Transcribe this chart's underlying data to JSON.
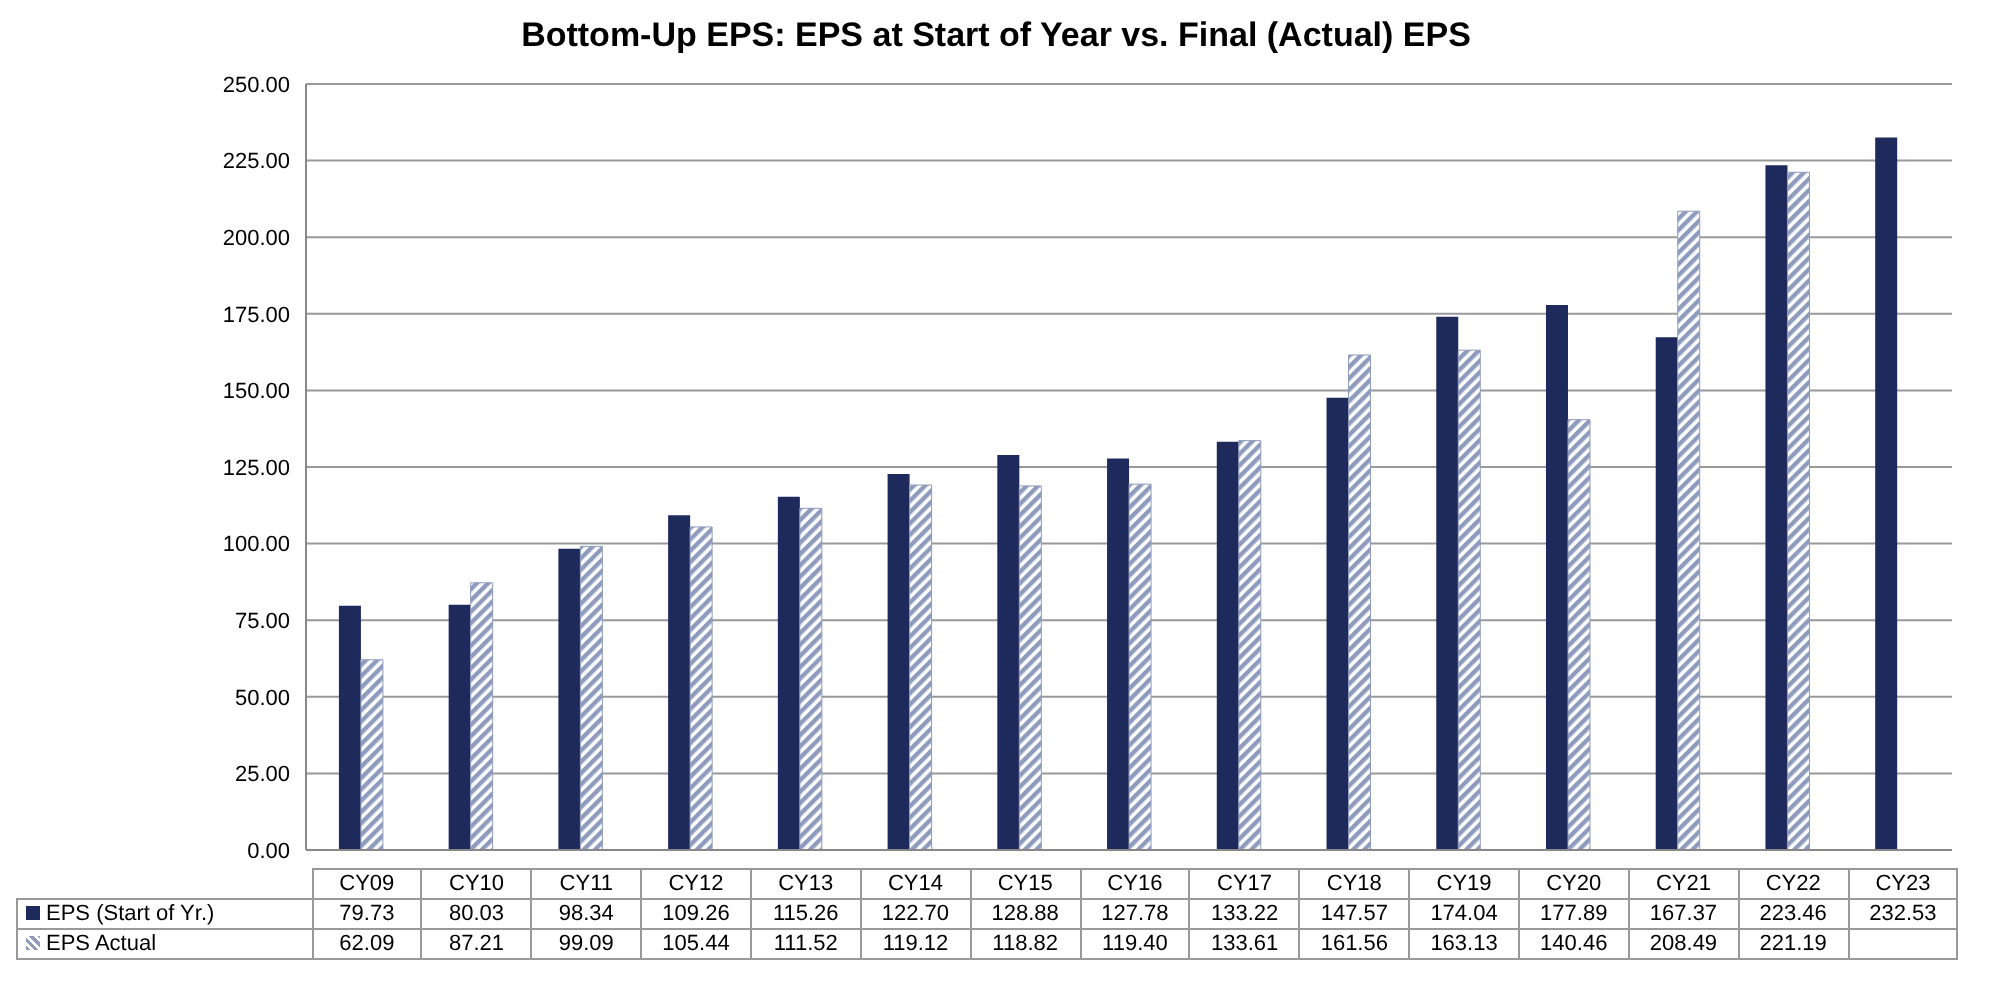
{
  "chart_data": {
    "type": "bar",
    "title": "Bottom-Up EPS: EPS at Start of Year vs. Final (Actual) EPS",
    "categories": [
      "CY09",
      "CY10",
      "CY11",
      "CY12",
      "CY13",
      "CY14",
      "CY15",
      "CY16",
      "CY17",
      "CY18",
      "CY19",
      "CY20",
      "CY21",
      "CY22",
      "CY23"
    ],
    "series": [
      {
        "name": "EPS (Start of Yr.)",
        "color": "#1f2a5c",
        "values": [
          79.73,
          80.03,
          98.34,
          109.26,
          115.26,
          122.7,
          128.88,
          127.78,
          133.22,
          147.57,
          174.04,
          177.89,
          167.37,
          223.46,
          232.53
        ],
        "value_labels": [
          "79.73",
          "80.03",
          "98.34",
          "109.26",
          "115.26",
          "122.70",
          "128.88",
          "127.78",
          "133.22",
          "147.57",
          "174.04",
          "177.89",
          "167.37",
          "223.46",
          "232.53"
        ]
      },
      {
        "name": "EPS Actual",
        "color": "#8f9bbd",
        "values": [
          62.09,
          87.21,
          99.09,
          105.44,
          111.52,
          119.12,
          118.82,
          119.4,
          133.61,
          161.56,
          163.13,
          140.46,
          208.49,
          221.19,
          null
        ],
        "value_labels": [
          "62.09",
          "87.21",
          "99.09",
          "105.44",
          "111.52",
          "119.12",
          "118.82",
          "119.40",
          "133.61",
          "161.56",
          "163.13",
          "140.46",
          "208.49",
          "221.19",
          null
        ]
      }
    ],
    "ylim": [
      0,
      250
    ],
    "yticks": [
      {
        "value": 0,
        "label": "0.00"
      },
      {
        "value": 25,
        "label": "25.00"
      },
      {
        "value": 50,
        "label": "50.00"
      },
      {
        "value": 75,
        "label": "75.00"
      },
      {
        "value": 100,
        "label": "100.00"
      },
      {
        "value": 125,
        "label": "125.00"
      },
      {
        "value": 150,
        "label": "150.00"
      },
      {
        "value": 175,
        "label": "175.00"
      },
      {
        "value": 200,
        "label": "200.00"
      },
      {
        "value": 225,
        "label": "225.00"
      },
      {
        "value": 250,
        "label": "250.00"
      }
    ],
    "grid": "y",
    "legend": "bottom"
  }
}
